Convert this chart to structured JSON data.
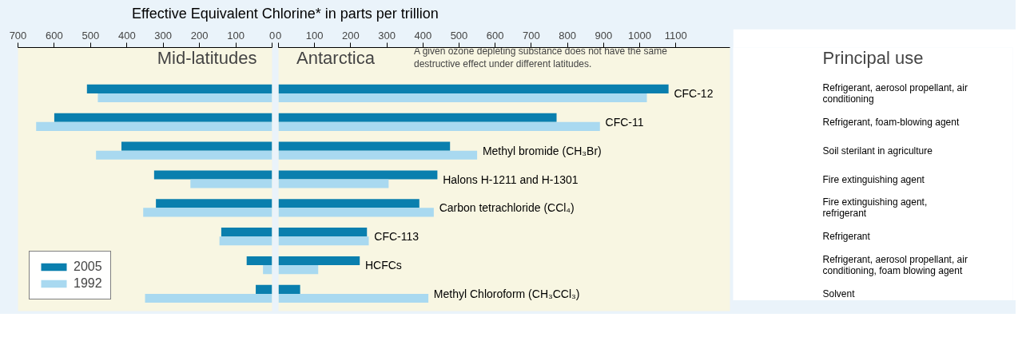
{
  "chart_data": [
    {
      "type": "bar",
      "orientation": "horizontal",
      "title": "Mid-latitudes",
      "xlabel": "Effective Equivalent Chlorine* in parts per trillion",
      "categories": [
        null,
        null,
        null,
        null,
        null,
        null,
        null,
        null
      ],
      "series": [
        {
          "name": "2005",
          "color": "#0a7fae",
          "values": [
            510,
            600,
            415,
            325,
            320,
            140,
            70,
            45
          ]
        },
        {
          "name": "1992",
          "color": "#a9d9f0",
          "values": [
            480,
            650,
            485,
            225,
            355,
            145,
            25,
            350
          ]
        }
      ],
      "xlim": [
        700,
        0
      ],
      "xticks": [
        700,
        600,
        500,
        400,
        300,
        200,
        100,
        0
      ],
      "grid": false,
      "legend": "bottom left",
      "tick_labels": "x"
    },
    {
      "type": "bar",
      "orientation": "horizontal",
      "title": "Antarctica",
      "annotations": [
        "A given ozone depleting substance does not have the same destructive effect under different latitudes."
      ],
      "categories": [
        "CFC-12",
        "CFC-11",
        "Methyl bromide (CH₃Br)",
        "Halons H-1211 and H-1301",
        "Carbon tetrachloride (CCl₄)",
        "CFC-113",
        "HCFCs",
        "Methyl Chloroform (CH₃CCl₃)"
      ],
      "series": [
        {
          "color": "#0a7fae",
          "values": [
            1080,
            770,
            475,
            440,
            390,
            245,
            225,
            60
          ]
        },
        {
          "color": "#a9d9f0",
          "values": [
            1020,
            890,
            550,
            305,
            430,
            250,
            110,
            415
          ]
        }
      ],
      "xlim": [
        0,
        1250
      ],
      "xticks": [
        0,
        100,
        200,
        300,
        400,
        500,
        600,
        700,
        800,
        900,
        1000,
        1100
      ],
      "grid": false
    },
    {
      "type": "other",
      "title": "Principal use",
      "annotations": [
        "Refrigerant, aerosol propellant, air conditioning",
        "Refrigerant, foam-blowing agent",
        "Soil sterilant in agriculture",
        "Fire extinguishing agent",
        "Fire extinguishing agent, refrigerant",
        "Refrigerant",
        "Refrigerant, aerosol propellant, air conditioning, foam blowing agent",
        "Solvent"
      ]
    }
  ]
}
